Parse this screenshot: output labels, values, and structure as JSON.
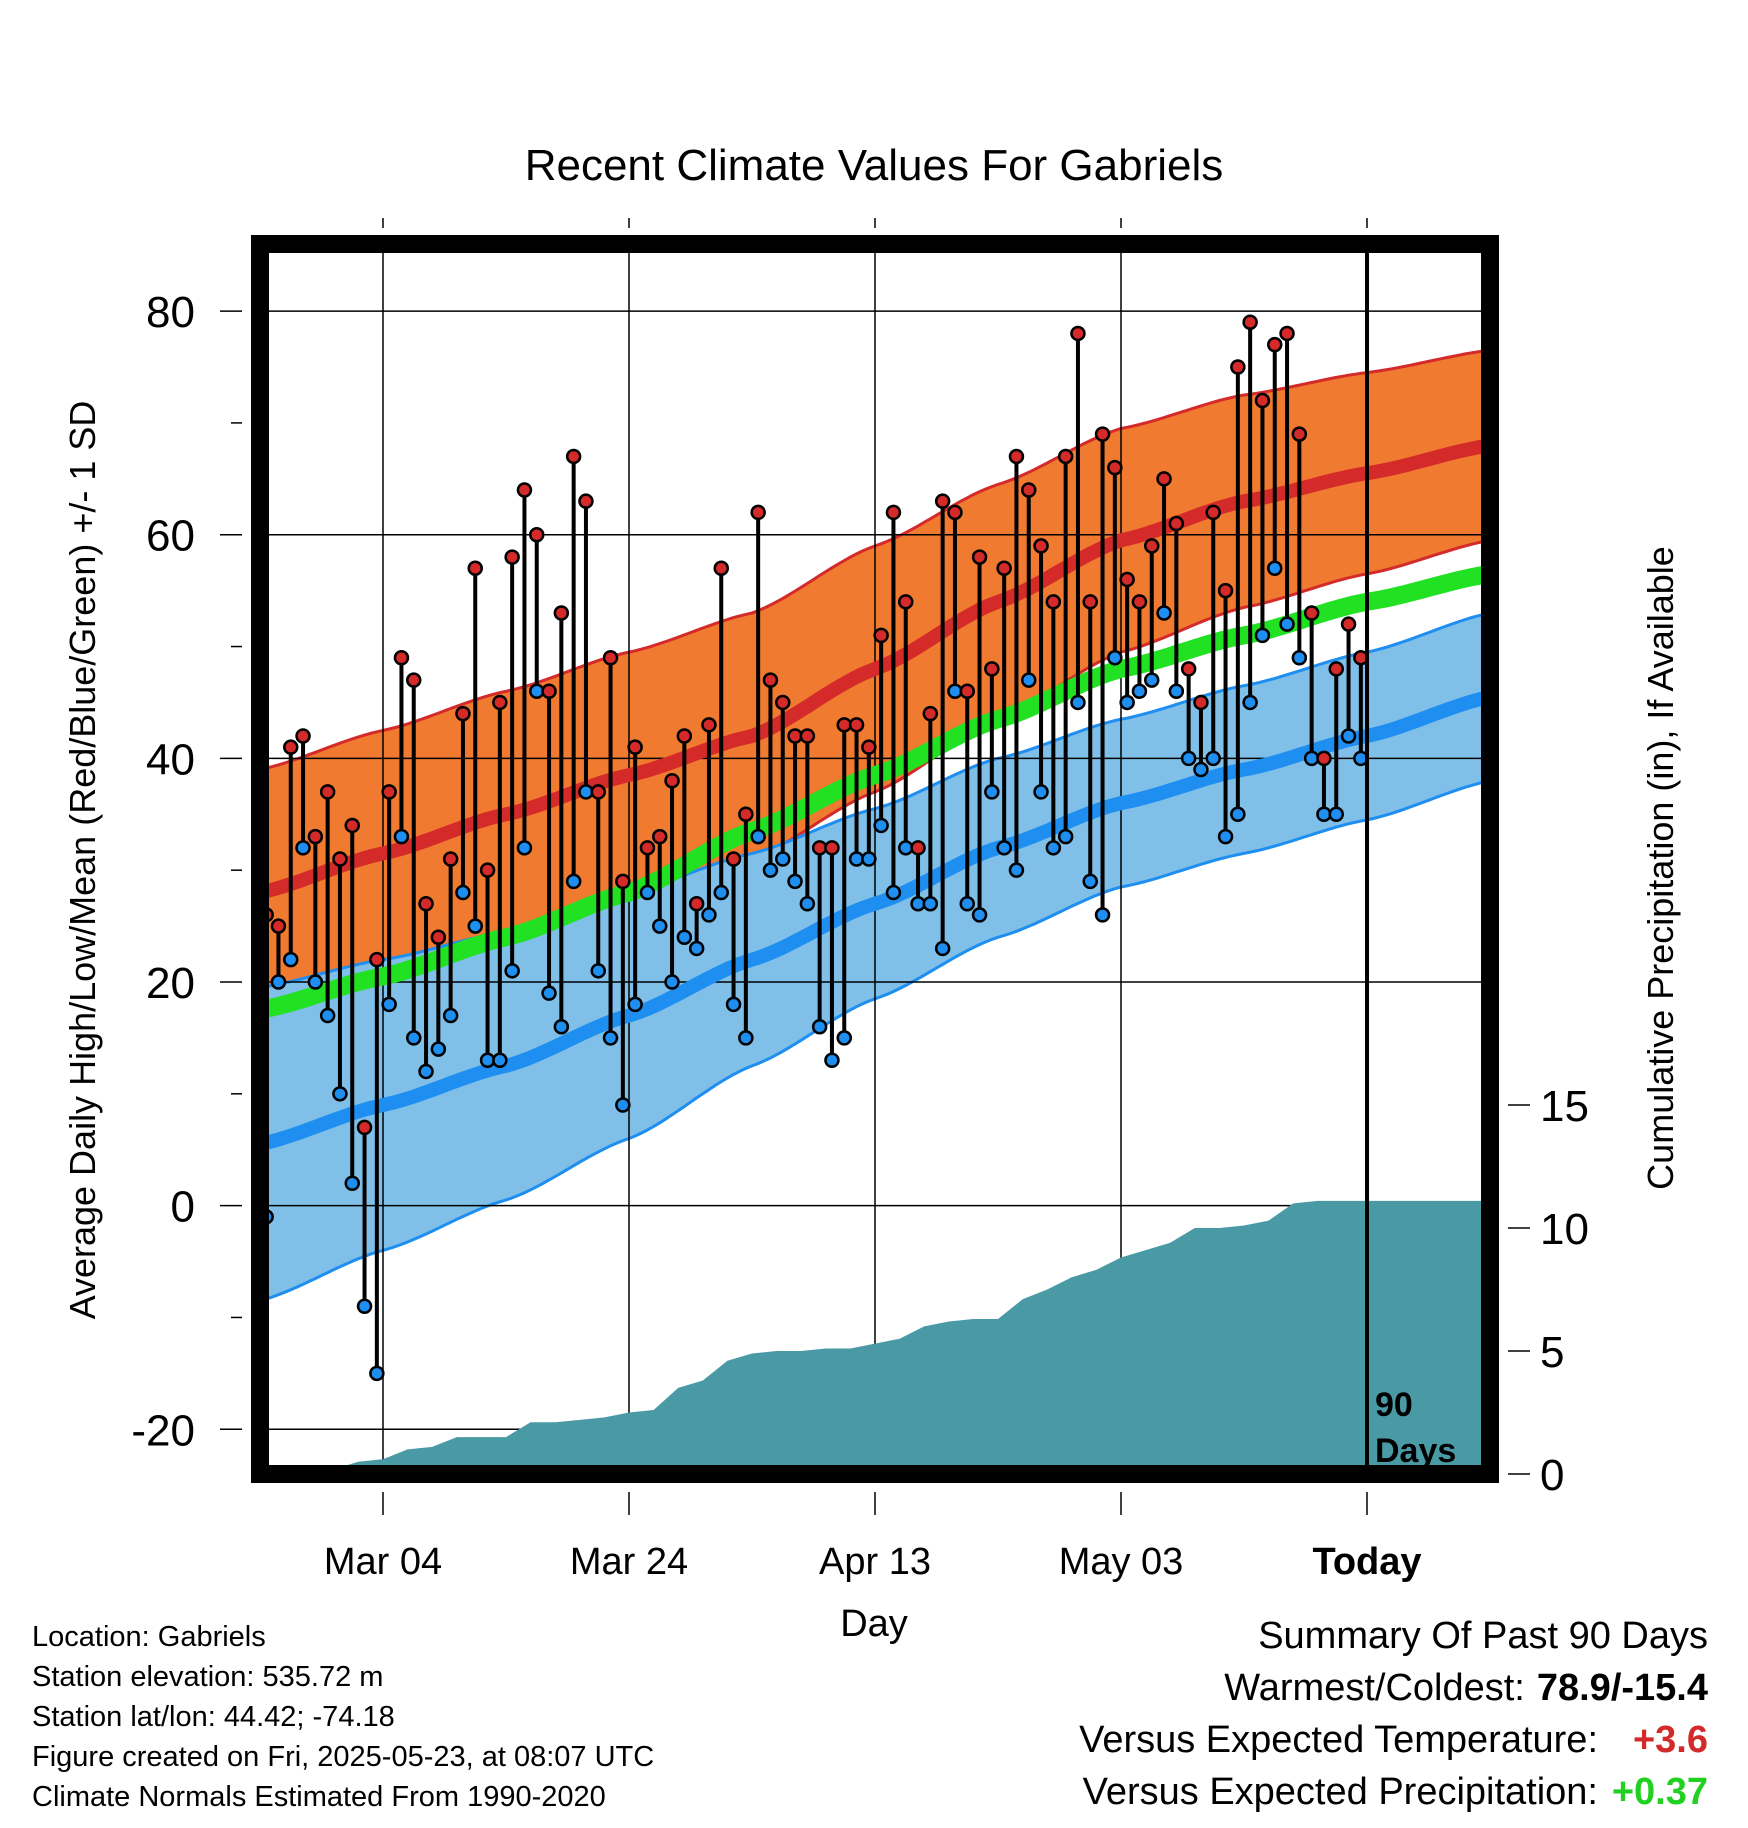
{
  "chart_data": {
    "type": "line",
    "title": "Recent Climate Values For Gabriels",
    "xlabel": "Day",
    "ylabel": "Average Daily High/Low/Mean (Red/Blue/Green) +/- 1 SD",
    "y2label": "Cumulative Precipitation (in), If Available",
    "x_ticks": [
      "Mar 04",
      "Mar 24",
      "Apr 13",
      "May 03",
      "Today"
    ],
    "x_range_days": [
      -90,
      10
    ],
    "ylim": [
      -24,
      86
    ],
    "y_ticks": [
      -20,
      0,
      20,
      40,
      60,
      80
    ],
    "y2lim": [
      0,
      50
    ],
    "y2_ticks": [
      0,
      5,
      10,
      15
    ],
    "grid": true,
    "marker_label": "90\nDays",
    "colors": {
      "high_band": "#f07a30",
      "high_line": "#d42a2a",
      "low_band": "#80c0e8",
      "low_line": "#1e8ef0",
      "mean_line": "#22e022",
      "precip": "#4a9aa5",
      "frame": "#000000"
    },
    "normals": {
      "x": [
        -90,
        -80,
        -70,
        -60,
        -50,
        -40,
        -30,
        -20,
        -10,
        0,
        10
      ],
      "high_mean": [
        28.0,
        31.5,
        35.0,
        38.5,
        42.0,
        48.0,
        54.0,
        59.5,
        63.0,
        65.5,
        68.0
      ],
      "high_sd": [
        11.0,
        11.0,
        11.0,
        11.0,
        11.0,
        11.0,
        10.5,
        10.0,
        9.5,
        9.0,
        8.5
      ],
      "low_mean": [
        5.5,
        9.0,
        12.5,
        17.0,
        22.0,
        27.0,
        32.0,
        36.0,
        39.0,
        42.0,
        45.5
      ],
      "low_sd": [
        14.0,
        13.0,
        12.0,
        11.0,
        9.5,
        8.5,
        8.0,
        7.5,
        7.5,
        7.5,
        7.5
      ],
      "mean": [
        17.5,
        20.5,
        24.0,
        28.0,
        33.5,
        38.5,
        43.5,
        48.0,
        51.0,
        54.0,
        56.5
      ]
    },
    "daily": {
      "high": [
        26,
        25,
        41,
        42,
        33,
        37,
        31,
        34,
        7,
        22,
        37,
        49,
        47,
        27,
        24,
        31,
        44,
        57,
        30,
        45,
        58,
        64,
        60,
        46,
        53,
        67,
        63,
        37,
        49,
        29,
        41,
        32,
        33,
        38,
        42,
        27,
        43,
        57,
        31,
        35,
        62,
        47,
        45,
        42,
        42,
        32,
        32,
        43,
        43,
        41,
        51,
        62,
        54,
        32,
        44,
        63,
        62,
        46,
        58,
        48,
        57,
        67,
        64,
        59,
        54,
        67,
        78,
        54,
        69,
        66,
        56,
        54,
        59,
        65,
        61,
        48,
        45,
        62,
        55,
        75,
        79,
        72,
        77,
        78,
        69,
        53,
        40,
        48,
        52,
        49
      ],
      "low": [
        -1,
        20,
        22,
        32,
        20,
        17,
        10,
        2,
        -9,
        -15,
        18,
        33,
        15,
        12,
        14,
        17,
        28,
        25,
        13,
        13,
        21,
        32,
        46,
        19,
        16,
        29,
        37,
        21,
        15,
        9,
        18,
        28,
        25,
        20,
        24,
        23,
        26,
        28,
        18,
        15,
        33,
        30,
        31,
        29,
        27,
        16,
        13,
        15,
        31,
        31,
        34,
        28,
        32,
        27,
        27,
        23,
        46,
        27,
        26,
        37,
        32,
        30,
        47,
        37,
        32,
        33,
        45,
        29,
        26,
        49,
        45,
        46,
        47,
        53,
        46,
        40,
        39,
        40,
        33,
        35,
        45,
        51,
        57,
        52,
        49,
        40,
        35,
        35,
        42,
        40
      ]
    },
    "precip_cumulative": {
      "x": [
        -90,
        -85,
        -84,
        -82,
        -80,
        -78,
        -76,
        -74,
        -72,
        -70,
        -68,
        -66,
        -64,
        -62,
        -60,
        -58,
        -56,
        -54,
        -52,
        -50,
        -48,
        -46,
        -44,
        -42,
        -40,
        -38,
        -36,
        -34,
        -32,
        -30,
        -28,
        -26,
        -24,
        -22,
        -20,
        -18,
        -16,
        -14,
        -12,
        -10,
        -8,
        -6,
        -4,
        -2,
        0,
        10
      ],
      "values": [
        0,
        0,
        0.2,
        0.5,
        0.6,
        1.0,
        1.1,
        1.5,
        1.5,
        1.5,
        2.1,
        2.1,
        2.2,
        2.3,
        2.5,
        2.6,
        3.5,
        3.8,
        4.6,
        4.9,
        5.0,
        5.0,
        5.1,
        5.1,
        5.3,
        5.5,
        6.0,
        6.2,
        6.3,
        6.3,
        7.1,
        7.5,
        8.0,
        8.3,
        8.8,
        9.1,
        9.4,
        10.0,
        10.0,
        10.1,
        10.3,
        11.0,
        11.1,
        11.1,
        11.1,
        11.1
      ]
    }
  },
  "info": {
    "location": "Location: Gabriels",
    "elevation": "Station elevation: 535.72 m",
    "latlon": "Station lat/lon: 44.42; -74.18",
    "created": "Figure created on Fri, 2025-05-23, at 08:07 UTC",
    "normals": "Climate Normals Estimated From 1990-2020"
  },
  "summary": {
    "title": "Summary Of Past 90 Days",
    "warmest_label": "Warmest/Coldest:",
    "warmest_value": "78.9/-15.4",
    "temp_label": "Versus Expected Temperature:",
    "temp_value": "+3.6",
    "temp_color": "#d42a2a",
    "precip_label": "Versus Expected Precipitation:",
    "precip_value": "+0.37",
    "precip_color": "#22d022"
  }
}
